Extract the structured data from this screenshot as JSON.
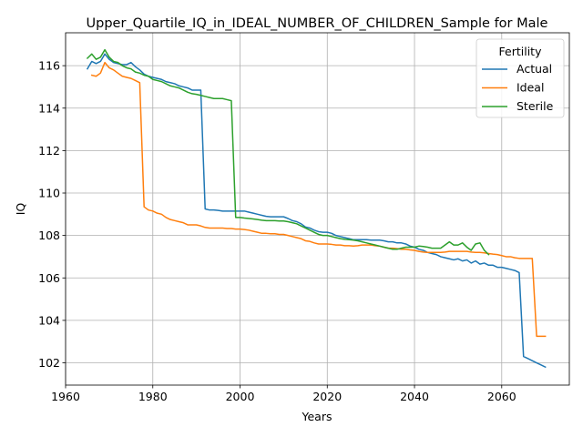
{
  "chart_data": {
    "type": "line",
    "title": "Upper_Quartile_IQ_in_IDEAL_NUMBER_OF_CHILDREN_Sample for Male",
    "xlabel": "Years",
    "ylabel": "IQ",
    "xlim": [
      1960,
      2075.5
    ],
    "ylim": [
      100.95,
      117.55
    ],
    "xticks": [
      1960,
      1980,
      2000,
      2020,
      2040,
      2060
    ],
    "yticks": [
      102,
      104,
      106,
      108,
      110,
      112,
      114,
      116
    ],
    "grid": true,
    "legend": {
      "title": "Fertility",
      "placement": "upper right"
    },
    "series": [
      {
        "name": "Actual",
        "color": "#1f77b4",
        "points": [
          [
            1965,
            115.85
          ],
          [
            1966,
            116.2
          ],
          [
            1967,
            116.1
          ],
          [
            1968,
            116.2
          ],
          [
            1969,
            116.55
          ],
          [
            1970,
            116.3
          ],
          [
            1971,
            116.15
          ],
          [
            1972,
            116.1
          ],
          [
            1973,
            116.05
          ],
          [
            1974,
            116.05
          ],
          [
            1975,
            116.15
          ],
          [
            1976,
            115.95
          ],
          [
            1977,
            115.8
          ],
          [
            1978,
            115.6
          ],
          [
            1979,
            115.5
          ],
          [
            1980,
            115.45
          ],
          [
            1981,
            115.4
          ],
          [
            1982,
            115.35
          ],
          [
            1983,
            115.25
          ],
          [
            1984,
            115.2
          ],
          [
            1985,
            115.15
          ],
          [
            1986,
            115.05
          ],
          [
            1987,
            115.0
          ],
          [
            1988,
            114.95
          ],
          [
            1989,
            114.85
          ],
          [
            1990,
            114.85
          ],
          [
            1991,
            114.85
          ],
          [
            1992,
            109.25
          ],
          [
            1993,
            109.2
          ],
          [
            1994,
            109.2
          ],
          [
            1995,
            109.18
          ],
          [
            1996,
            109.15
          ],
          [
            1997,
            109.15
          ],
          [
            1998,
            109.15
          ],
          [
            1999,
            109.15
          ],
          [
            2000,
            109.15
          ],
          [
            2001,
            109.15
          ],
          [
            2002,
            109.1
          ],
          [
            2003,
            109.05
          ],
          [
            2004,
            109.0
          ],
          [
            2005,
            108.95
          ],
          [
            2006,
            108.9
          ],
          [
            2007,
            108.88
          ],
          [
            2008,
            108.88
          ],
          [
            2009,
            108.88
          ],
          [
            2010,
            108.88
          ],
          [
            2011,
            108.8
          ],
          [
            2012,
            108.7
          ],
          [
            2013,
            108.65
          ],
          [
            2014,
            108.55
          ],
          [
            2015,
            108.4
          ],
          [
            2016,
            108.35
          ],
          [
            2017,
            108.25
          ],
          [
            2018,
            108.18
          ],
          [
            2019,
            108.15
          ],
          [
            2020,
            108.15
          ],
          [
            2021,
            108.1
          ],
          [
            2022,
            108.0
          ],
          [
            2023,
            107.95
          ],
          [
            2024,
            107.9
          ],
          [
            2025,
            107.85
          ],
          [
            2026,
            107.8
          ],
          [
            2027,
            107.8
          ],
          [
            2028,
            107.8
          ],
          [
            2029,
            107.8
          ],
          [
            2030,
            107.78
          ],
          [
            2031,
            107.78
          ],
          [
            2032,
            107.78
          ],
          [
            2033,
            107.75
          ],
          [
            2034,
            107.7
          ],
          [
            2035,
            107.7
          ],
          [
            2036,
            107.65
          ],
          [
            2037,
            107.65
          ],
          [
            2038,
            107.6
          ],
          [
            2039,
            107.5
          ],
          [
            2040,
            107.45
          ],
          [
            2041,
            107.35
          ],
          [
            2042,
            107.3
          ],
          [
            2043,
            107.2
          ],
          [
            2044,
            107.15
          ],
          [
            2045,
            107.1
          ],
          [
            2046,
            107.0
          ],
          [
            2047,
            106.95
          ],
          [
            2048,
            106.9
          ],
          [
            2049,
            106.85
          ],
          [
            2050,
            106.9
          ],
          [
            2051,
            106.8
          ],
          [
            2052,
            106.85
          ],
          [
            2053,
            106.7
          ],
          [
            2054,
            106.8
          ],
          [
            2055,
            106.65
          ],
          [
            2056,
            106.7
          ],
          [
            2057,
            106.6
          ],
          [
            2058,
            106.6
          ],
          [
            2059,
            106.5
          ],
          [
            2060,
            106.5
          ],
          [
            2061,
            106.45
          ],
          [
            2062,
            106.4
          ],
          [
            2063,
            106.35
          ],
          [
            2064,
            106.25
          ],
          [
            2065,
            102.3
          ],
          [
            2066,
            102.2
          ],
          [
            2067,
            102.1
          ],
          [
            2068,
            102.0
          ],
          [
            2069,
            101.9
          ],
          [
            2070,
            101.8
          ]
        ]
      },
      {
        "name": "Ideal",
        "color": "#ff7f0e",
        "points": [
          [
            1966,
            115.55
          ],
          [
            1967,
            115.5
          ],
          [
            1968,
            115.65
          ],
          [
            1969,
            116.15
          ],
          [
            1970,
            115.9
          ],
          [
            1971,
            115.8
          ],
          [
            1972,
            115.65
          ],
          [
            1973,
            115.5
          ],
          [
            1974,
            115.45
          ],
          [
            1975,
            115.4
          ],
          [
            1976,
            115.3
          ],
          [
            1977,
            115.2
          ],
          [
            1978,
            109.35
          ],
          [
            1979,
            109.2
          ],
          [
            1980,
            109.15
          ],
          [
            1981,
            109.05
          ],
          [
            1982,
            109.0
          ],
          [
            1983,
            108.85
          ],
          [
            1984,
            108.75
          ],
          [
            1985,
            108.7
          ],
          [
            1986,
            108.65
          ],
          [
            1987,
            108.6
          ],
          [
            1988,
            108.5
          ],
          [
            1989,
            108.5
          ],
          [
            1990,
            108.5
          ],
          [
            1991,
            108.45
          ],
          [
            1992,
            108.38
          ],
          [
            1993,
            108.35
          ],
          [
            1994,
            108.35
          ],
          [
            1995,
            108.35
          ],
          [
            1996,
            108.35
          ],
          [
            1997,
            108.33
          ],
          [
            1998,
            108.33
          ],
          [
            1999,
            108.3
          ],
          [
            2000,
            108.3
          ],
          [
            2001,
            108.28
          ],
          [
            2002,
            108.25
          ],
          [
            2003,
            108.2
          ],
          [
            2004,
            108.15
          ],
          [
            2005,
            108.1
          ],
          [
            2006,
            108.1
          ],
          [
            2007,
            108.08
          ],
          [
            2008,
            108.08
          ],
          [
            2009,
            108.05
          ],
          [
            2010,
            108.05
          ],
          [
            2011,
            108.0
          ],
          [
            2012,
            107.95
          ],
          [
            2013,
            107.9
          ],
          [
            2014,
            107.85
          ],
          [
            2015,
            107.75
          ],
          [
            2016,
            107.72
          ],
          [
            2017,
            107.65
          ],
          [
            2018,
            107.6
          ],
          [
            2019,
            107.6
          ],
          [
            2020,
            107.6
          ],
          [
            2021,
            107.58
          ],
          [
            2022,
            107.55
          ],
          [
            2023,
            107.55
          ],
          [
            2024,
            107.52
          ],
          [
            2025,
            107.52
          ],
          [
            2026,
            107.5
          ],
          [
            2027,
            107.52
          ],
          [
            2028,
            107.55
          ],
          [
            2029,
            107.55
          ],
          [
            2030,
            107.55
          ],
          [
            2031,
            107.52
          ],
          [
            2032,
            107.5
          ],
          [
            2033,
            107.45
          ],
          [
            2034,
            107.4
          ],
          [
            2035,
            107.4
          ],
          [
            2036,
            107.38
          ],
          [
            2037,
            107.35
          ],
          [
            2038,
            107.35
          ],
          [
            2039,
            107.32
          ],
          [
            2040,
            107.3
          ],
          [
            2041,
            107.25
          ],
          [
            2042,
            107.22
          ],
          [
            2043,
            107.2
          ],
          [
            2044,
            107.2
          ],
          [
            2045,
            107.2
          ],
          [
            2046,
            107.2
          ],
          [
            2047,
            107.22
          ],
          [
            2048,
            107.25
          ],
          [
            2049,
            107.25
          ],
          [
            2050,
            107.25
          ],
          [
            2051,
            107.25
          ],
          [
            2052,
            107.25
          ],
          [
            2053,
            107.22
          ],
          [
            2054,
            107.2
          ],
          [
            2055,
            107.2
          ],
          [
            2056,
            107.18
          ],
          [
            2057,
            107.15
          ],
          [
            2058,
            107.12
          ],
          [
            2059,
            107.1
          ],
          [
            2060,
            107.05
          ],
          [
            2061,
            107.0
          ],
          [
            2062,
            107.0
          ],
          [
            2063,
            106.95
          ],
          [
            2064,
            106.92
          ],
          [
            2065,
            106.92
          ],
          [
            2066,
            106.92
          ],
          [
            2067,
            106.92
          ],
          [
            2068,
            103.25
          ],
          [
            2069,
            103.25
          ],
          [
            2070,
            103.25
          ]
        ]
      },
      {
        "name": "Sterile",
        "color": "#2ca02c",
        "points": [
          [
            1965,
            116.35
          ],
          [
            1966,
            116.55
          ],
          [
            1967,
            116.3
          ],
          [
            1968,
            116.4
          ],
          [
            1969,
            116.75
          ],
          [
            1970,
            116.4
          ],
          [
            1971,
            116.2
          ],
          [
            1972,
            116.15
          ],
          [
            1973,
            116.0
          ],
          [
            1974,
            115.9
          ],
          [
            1975,
            115.85
          ],
          [
            1976,
            115.7
          ],
          [
            1977,
            115.65
          ],
          [
            1978,
            115.55
          ],
          [
            1979,
            115.5
          ],
          [
            1980,
            115.35
          ],
          [
            1981,
            115.3
          ],
          [
            1982,
            115.25
          ],
          [
            1983,
            115.15
          ],
          [
            1984,
            115.05
          ],
          [
            1985,
            115.0
          ],
          [
            1986,
            114.95
          ],
          [
            1987,
            114.85
          ],
          [
            1988,
            114.75
          ],
          [
            1989,
            114.68
          ],
          [
            1990,
            114.65
          ],
          [
            1991,
            114.6
          ],
          [
            1992,
            114.55
          ],
          [
            1993,
            114.5
          ],
          [
            1994,
            114.45
          ],
          [
            1995,
            114.45
          ],
          [
            1996,
            114.45
          ],
          [
            1997,
            114.4
          ],
          [
            1998,
            114.35
          ],
          [
            1999,
            108.85
          ],
          [
            2000,
            108.85
          ],
          [
            2001,
            108.82
          ],
          [
            2002,
            108.8
          ],
          [
            2003,
            108.78
          ],
          [
            2004,
            108.75
          ],
          [
            2005,
            108.72
          ],
          [
            2006,
            108.7
          ],
          [
            2007,
            108.7
          ],
          [
            2008,
            108.7
          ],
          [
            2009,
            108.68
          ],
          [
            2010,
            108.68
          ],
          [
            2011,
            108.65
          ],
          [
            2012,
            108.6
          ],
          [
            2013,
            108.55
          ],
          [
            2014,
            108.45
          ],
          [
            2015,
            108.35
          ],
          [
            2016,
            108.25
          ],
          [
            2017,
            108.15
          ],
          [
            2018,
            108.05
          ],
          [
            2019,
            108.0
          ],
          [
            2020,
            108.0
          ],
          [
            2021,
            107.95
          ],
          [
            2022,
            107.9
          ],
          [
            2023,
            107.85
          ],
          [
            2024,
            107.82
          ],
          [
            2025,
            107.8
          ],
          [
            2026,
            107.78
          ],
          [
            2027,
            107.75
          ],
          [
            2028,
            107.7
          ],
          [
            2029,
            107.65
          ],
          [
            2030,
            107.6
          ],
          [
            2031,
            107.55
          ],
          [
            2032,
            107.5
          ],
          [
            2033,
            107.45
          ],
          [
            2034,
            107.4
          ],
          [
            2035,
            107.35
          ],
          [
            2036,
            107.35
          ],
          [
            2037,
            107.4
          ],
          [
            2038,
            107.45
          ],
          [
            2039,
            107.45
          ],
          [
            2040,
            107.45
          ],
          [
            2041,
            107.5
          ],
          [
            2042,
            107.48
          ],
          [
            2043,
            107.45
          ],
          [
            2044,
            107.4
          ],
          [
            2045,
            107.4
          ],
          [
            2046,
            107.4
          ],
          [
            2047,
            107.55
          ],
          [
            2048,
            107.7
          ],
          [
            2049,
            107.55
          ],
          [
            2050,
            107.55
          ],
          [
            2051,
            107.65
          ],
          [
            2052,
            107.45
          ],
          [
            2053,
            107.3
          ],
          [
            2054,
            107.6
          ],
          [
            2055,
            107.65
          ],
          [
            2056,
            107.3
          ],
          [
            2057,
            107.1
          ]
        ]
      }
    ]
  }
}
